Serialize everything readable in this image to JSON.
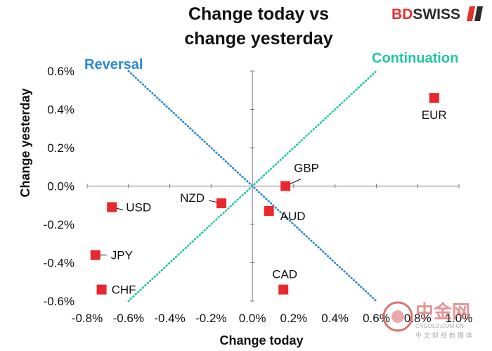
{
  "brand": {
    "bd": "BD",
    "swiss": "SWISS",
    "bd_color": "#e63030",
    "swiss_color": "#2b2b2b"
  },
  "watermark": {
    "text_cn": "中金网",
    "site": "CNGOLD.COM.CN",
    "tagline_cn": "中文财经新媒体"
  },
  "chart_data": {
    "type": "scatter",
    "title_lines": [
      "Change today vs",
      "change yesterday"
    ],
    "xlabel": "Change today",
    "ylabel": "Change yesterday",
    "xlim": [
      -0.8,
      1.0
    ],
    "ylim": [
      -0.6,
      0.6
    ],
    "x_ticks": [
      -0.8,
      -0.6,
      -0.4,
      -0.2,
      0.0,
      0.2,
      0.4,
      0.6,
      0.8,
      1.0
    ],
    "x_tick_labels": [
      "-0.8%",
      "-0.6%",
      "-0.4%",
      "-0.2%",
      "0.0%",
      "0.2%",
      "0.4%",
      "0.6%",
      "0.8%",
      "1.0%"
    ],
    "y_ticks": [
      0.6,
      0.4,
      0.2,
      0.0,
      -0.2,
      -0.4,
      -0.6
    ],
    "y_tick_labels": [
      "0.6%",
      "0.4%",
      "0.2%",
      "0.0%",
      "-0.2%",
      "-0.4%",
      "-0.6%"
    ],
    "marker_color": "#e8282d",
    "points": [
      {
        "label": "EUR",
        "x": 0.88,
        "y": 0.46
      },
      {
        "label": "GBP",
        "x": 0.16,
        "y": 0.0
      },
      {
        "label": "AUD",
        "x": 0.08,
        "y": -0.13
      },
      {
        "label": "NZD",
        "x": -0.15,
        "y": -0.09
      },
      {
        "label": "USD",
        "x": -0.68,
        "y": -0.11
      },
      {
        "label": "JPY",
        "x": -0.76,
        "y": -0.36
      },
      {
        "label": "CHF",
        "x": -0.73,
        "y": -0.54
      },
      {
        "label": "CAD",
        "x": 0.15,
        "y": -0.54
      }
    ],
    "annotations": [
      {
        "text": "Reversal",
        "color": "#2a86d8"
      },
      {
        "text": "Continuation",
        "color": "#1fc7a4"
      }
    ],
    "reference_lines": [
      {
        "name": "reversal",
        "from": [
          -0.6,
          0.6
        ],
        "to": [
          0.6,
          -0.6
        ],
        "color": "#2a86d8"
      },
      {
        "name": "continuation",
        "from": [
          -0.6,
          -0.6
        ],
        "to": [
          0.6,
          0.6
        ],
        "color": "#1fc7a4"
      }
    ]
  }
}
